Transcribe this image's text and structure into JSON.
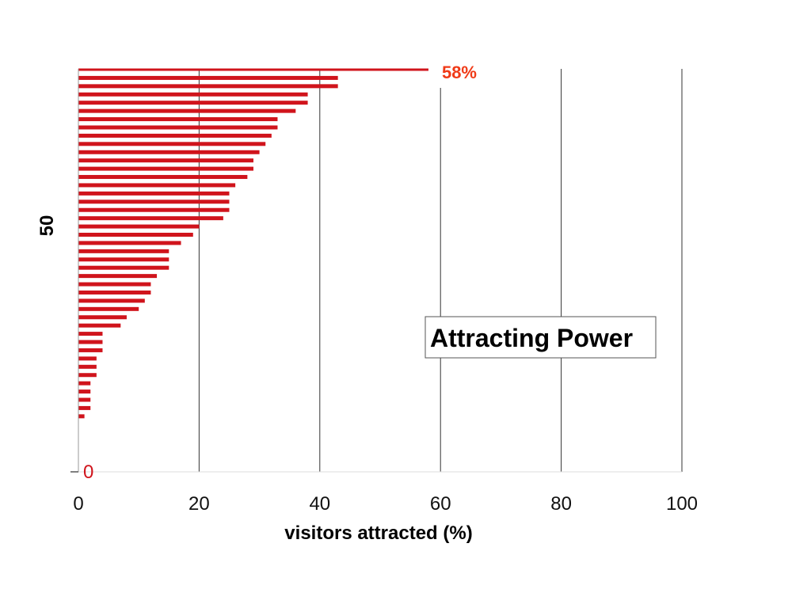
{
  "chart_data": {
    "type": "bar",
    "orientation": "horizontal",
    "title": "",
    "xlabel": "visitors attracted (%)",
    "ylabel": "50",
    "xlim": [
      0,
      100
    ],
    "x_ticks": [
      "0",
      "20",
      "40",
      "60",
      "80",
      "100"
    ],
    "grid": "vertical lines at x ticks",
    "annotations": {
      "top_value_label": "58%",
      "origin_label": "0"
    },
    "legend": {
      "text": "Attracting  Power",
      "placement": "center-right"
    },
    "values": [
      58,
      43,
      43,
      38,
      38,
      36,
      33,
      33,
      32,
      31,
      30,
      29,
      29,
      28,
      26,
      25,
      25,
      25,
      24,
      20,
      19,
      17,
      15,
      15,
      15,
      13,
      12,
      12,
      11,
      10,
      8,
      7,
      4,
      4,
      4,
      3,
      3,
      3,
      2,
      2,
      2,
      2,
      1
    ],
    "colors": {
      "bar": "#d0141c",
      "top_label": "#f03a17",
      "origin_label": "#d0141c",
      "grid": "#333333"
    }
  }
}
